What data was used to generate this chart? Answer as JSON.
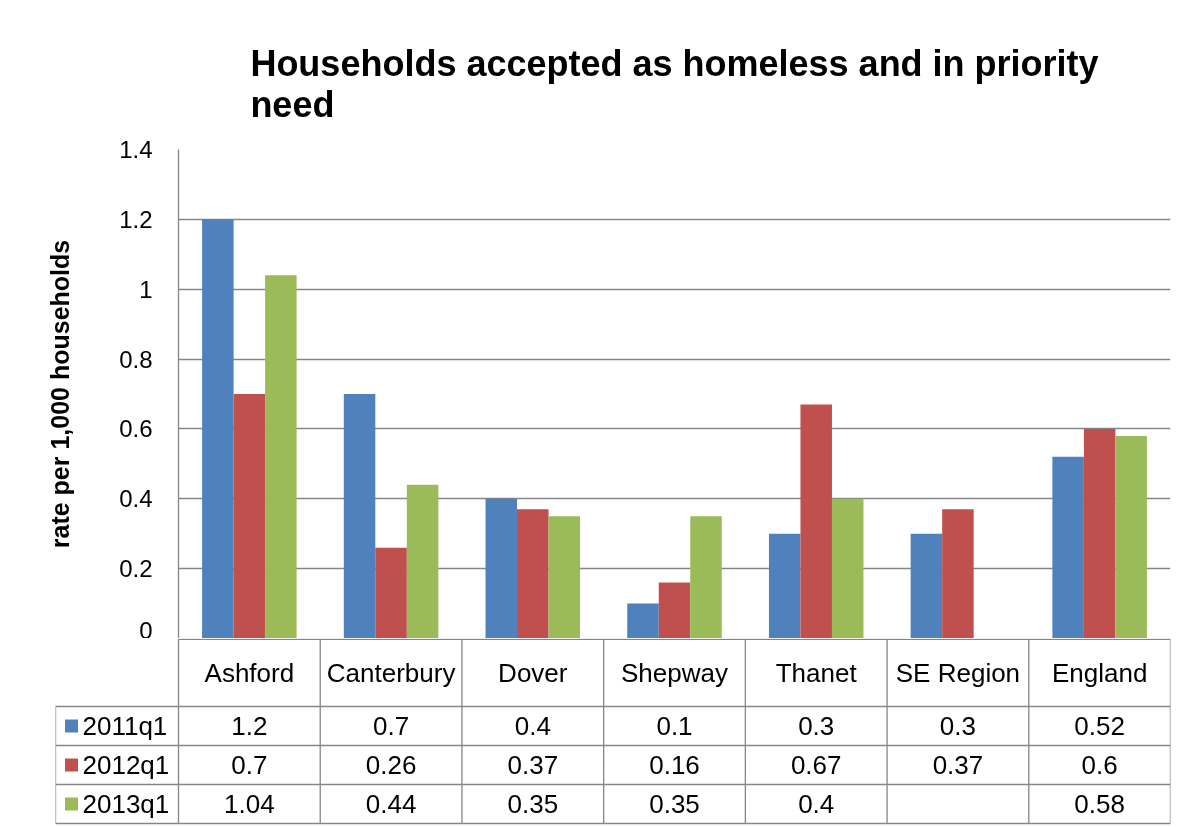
{
  "chart_data": {
    "type": "bar",
    "title": "Households accepted as homeless and in priority need",
    "ylabel": "rate per 1,000 households",
    "categories": [
      "Ashford",
      "Canterbury",
      "Dover",
      "Shepway",
      "Thanet",
      "SE Region",
      "England"
    ],
    "series": [
      {
        "name": "2011q1",
        "color": "#4f81bd",
        "values": [
          1.2,
          0.7,
          0.4,
          0.1,
          0.3,
          0.3,
          0.52
        ]
      },
      {
        "name": "2012q1",
        "color": "#c0504d",
        "values": [
          0.7,
          0.26,
          0.37,
          0.16,
          0.67,
          0.37,
          0.6
        ]
      },
      {
        "name": "2013q1",
        "color": "#9bbb59",
        "values": [
          1.04,
          0.44,
          0.35,
          0.35,
          0.4,
          null,
          0.58
        ]
      }
    ],
    "ylim": [
      0,
      1.4
    ],
    "yticks": [
      0,
      0.2,
      0.4,
      0.6,
      0.8,
      1,
      1.2,
      1.4
    ],
    "grid": "y",
    "legend": "bottom",
    "data_labels": true
  }
}
